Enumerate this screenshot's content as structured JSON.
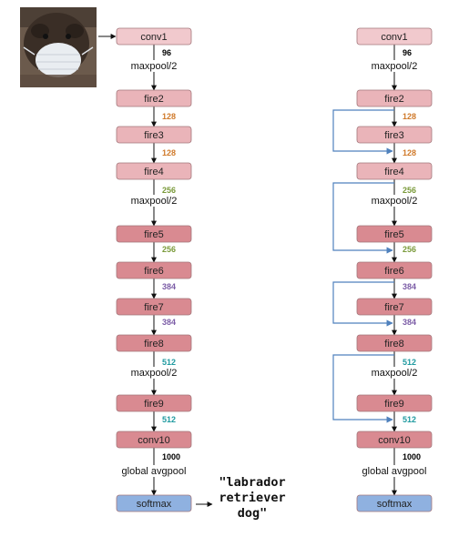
{
  "colors": {
    "conv": "#f1c9cd",
    "fire_light": "#eab4b9",
    "fire_dark": "#d98a91",
    "softmax": "#8fb1e0",
    "bypass_arrow": "#4f81bd",
    "ch_96": "#000000",
    "ch_128": "#d07a2a",
    "ch_256": "#7a9a3a",
    "ch_384": "#7b5ca6",
    "ch_512": "#1f9aa0",
    "ch_1000": "#000000"
  },
  "input_image": {
    "subject": "dog wearing a face mask",
    "icon": "photo-dog-masked"
  },
  "prediction": [
    "\"labrador",
    "retriever",
    "dog\""
  ],
  "left": {
    "layers": [
      "conv1",
      "fire2",
      "fire3",
      "fire4",
      "fire5",
      "fire6",
      "fire7",
      "fire8",
      "fire9",
      "conv10",
      "softmax"
    ],
    "channels": [
      "96",
      "128",
      "128",
      "256",
      "256",
      "384",
      "384",
      "512",
      "512",
      "1000"
    ],
    "pool_labels": [
      "maxpool/2",
      "maxpool/2",
      "maxpool/2",
      "global avgpool"
    ]
  },
  "right": {
    "layers": [
      "conv1",
      "fire2",
      "fire3",
      "fire4",
      "fire5",
      "fire6",
      "fire7",
      "fire8",
      "fire9",
      "conv10",
      "softmax"
    ],
    "channels": [
      "96",
      "128",
      "128",
      "256",
      "256",
      "384",
      "384",
      "512",
      "512",
      "1000"
    ],
    "pool_labels": [
      "maxpool/2",
      "maxpool/2",
      "maxpool/2",
      "global avgpool"
    ]
  }
}
